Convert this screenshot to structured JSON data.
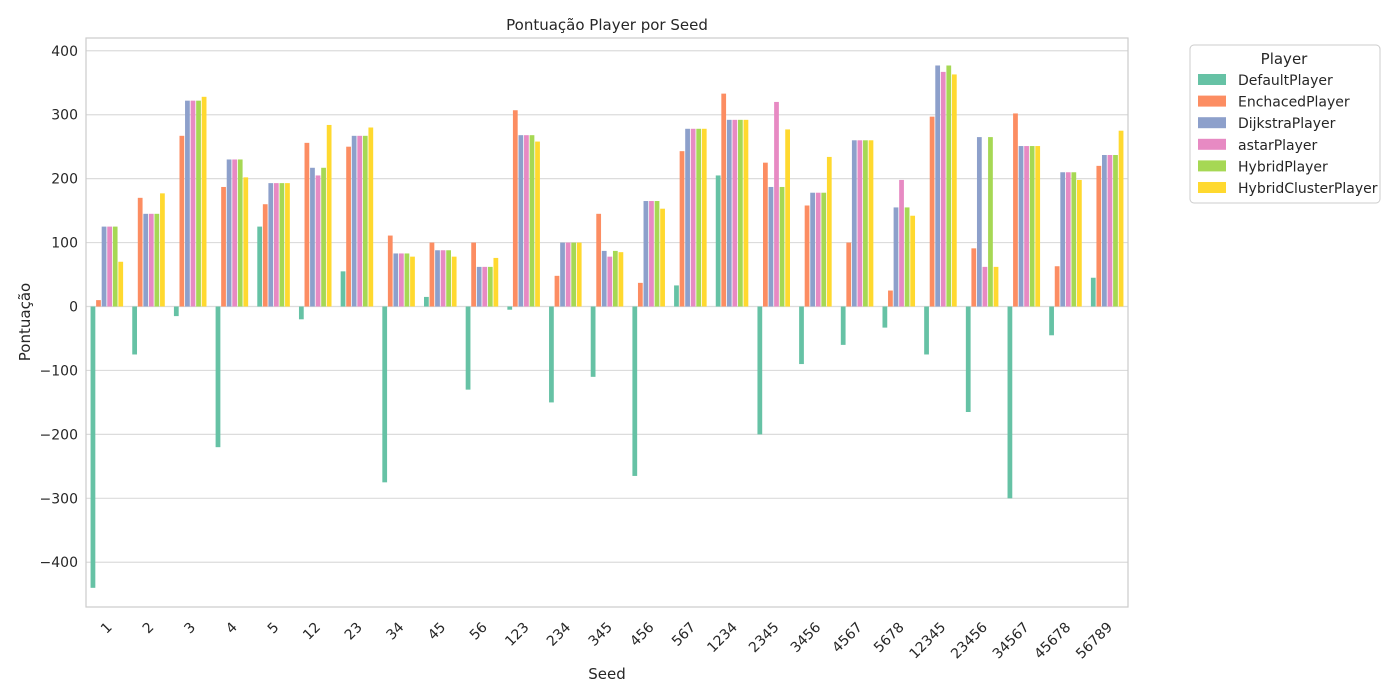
{
  "chart_data": {
    "type": "bar",
    "title": "Pontuação Player por Seed",
    "xlabel": "Seed",
    "ylabel": "Pontuação",
    "ylim": [
      -470,
      420
    ],
    "yticks": [
      -400,
      -300,
      -200,
      -100,
      0,
      100,
      200,
      300,
      400
    ],
    "ytick_labels": [
      "−400",
      "−300",
      "−200",
      "−100",
      "0",
      "100",
      "200",
      "300",
      "400"
    ],
    "grid": true,
    "legend": {
      "title": "Player",
      "placement": "outside-top-right"
    },
    "categories": [
      "1",
      "2",
      "3",
      "4",
      "5",
      "12",
      "23",
      "34",
      "45",
      "56",
      "123",
      "234",
      "345",
      "456",
      "567",
      "1234",
      "2345",
      "3456",
      "4567",
      "5678",
      "12345",
      "23456",
      "34567",
      "45678",
      "56789"
    ],
    "series": [
      {
        "name": "DefaultPlayer",
        "color": "#66c2a5",
        "values": [
          -440,
          -75,
          -15,
          -220,
          125,
          -20,
          55,
          -275,
          15,
          -130,
          -5,
          -150,
          -110,
          -265,
          33,
          205,
          -200,
          -90,
          -60,
          -33,
          -75,
          -165,
          -300,
          -45,
          45
        ]
      },
      {
        "name": "EnchacedPlayer",
        "color": "#fc8d62",
        "values": [
          10,
          170,
          267,
          187,
          160,
          256,
          250,
          111,
          100,
          100,
          307,
          48,
          145,
          37,
          243,
          333,
          225,
          158,
          100,
          25,
          297,
          91,
          302,
          63,
          220
        ]
      },
      {
        "name": "DijkstraPlayer",
        "color": "#8da0cb",
        "values": [
          125,
          145,
          322,
          230,
          193,
          217,
          267,
          83,
          88,
          62,
          268,
          100,
          87,
          165,
          278,
          292,
          187,
          178,
          260,
          155,
          377,
          265,
          251,
          210,
          237
        ]
      },
      {
        "name": "astarPlayer",
        "color": "#e78ac3",
        "values": [
          125,
          145,
          322,
          230,
          193,
          205,
          267,
          83,
          88,
          62,
          268,
          100,
          78,
          165,
          278,
          292,
          320,
          178,
          260,
          198,
          367,
          62,
          251,
          210,
          237
        ]
      },
      {
        "name": "HybridPlayer",
        "color": "#a6d854",
        "values": [
          125,
          145,
          322,
          230,
          193,
          217,
          267,
          83,
          88,
          62,
          268,
          100,
          87,
          165,
          278,
          292,
          187,
          178,
          260,
          155,
          377,
          265,
          251,
          210,
          237
        ]
      },
      {
        "name": "HybridClusterPlayer",
        "color": "#ffd92f",
        "values": [
          70,
          177,
          328,
          202,
          193,
          284,
          280,
          78,
          78,
          76,
          258,
          100,
          85,
          153,
          278,
          292,
          277,
          234,
          260,
          142,
          363,
          62,
          251,
          198,
          275
        ]
      }
    ]
  }
}
